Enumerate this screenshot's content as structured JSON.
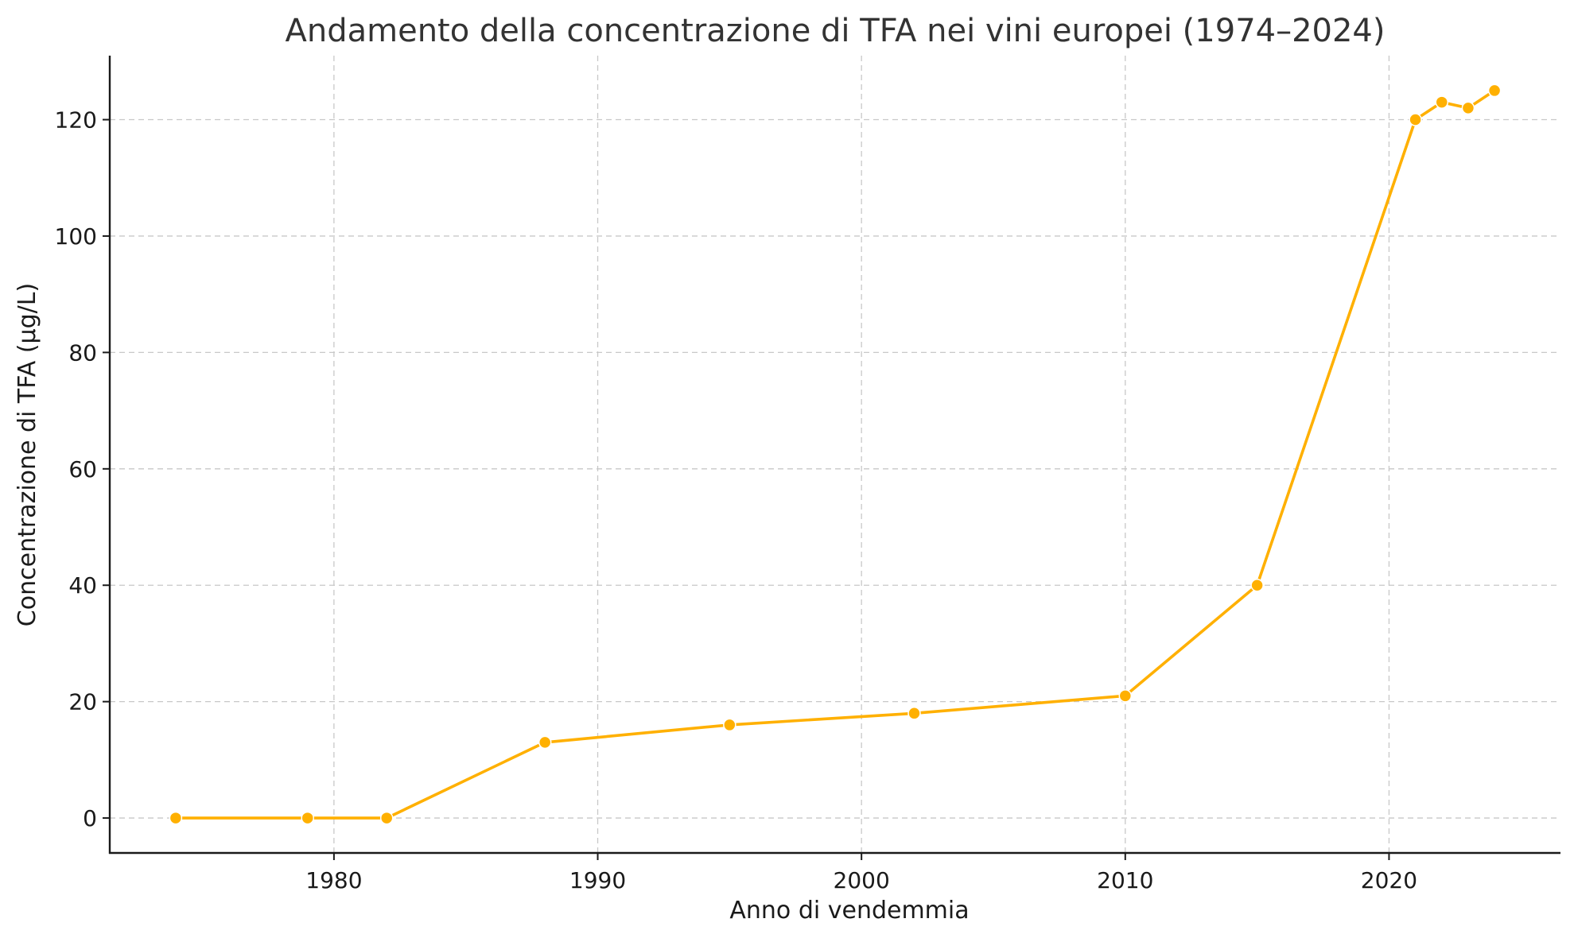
{
  "chart_data": {
    "type": "line",
    "title": "Andamento della concentrazione di TFA nei vini europei (1974–2024)",
    "xlabel": "Anno di vendemmia",
    "ylabel": "Concentrazione di TFA (µg/L)",
    "xlim": [
      1971.5,
      2026.5
    ],
    "ylim": [
      -6,
      131
    ],
    "xticks": [
      1980,
      1990,
      2000,
      2010,
      2020
    ],
    "yticks": [
      0,
      20,
      40,
      60,
      80,
      100,
      120
    ],
    "grid": true,
    "legend": "none",
    "series": [
      {
        "color": "#FFB000",
        "marker": "circle",
        "x": [
          1974,
          1979,
          1982,
          1988,
          1995,
          2002,
          2010,
          2015,
          2021,
          2022,
          2023,
          2024
        ],
        "y": [
          0,
          0,
          0,
          13,
          16,
          18,
          21,
          40,
          120,
          123,
          122,
          125
        ]
      }
    ]
  }
}
